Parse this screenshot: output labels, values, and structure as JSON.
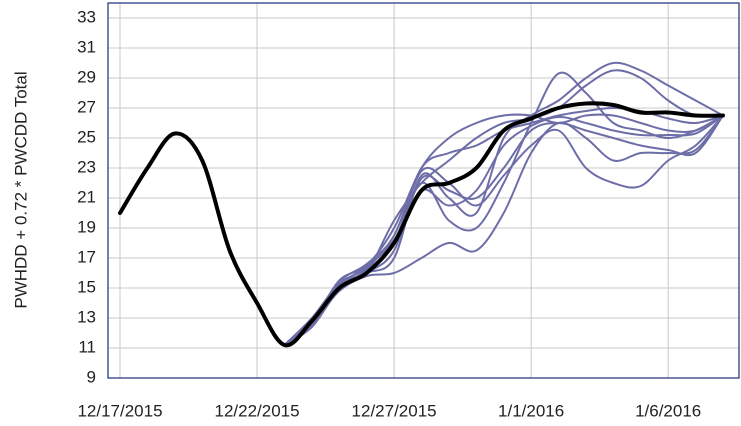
{
  "chart_data": {
    "type": "line",
    "y_label": "PWHDD  +  0.72 * PWCDD Total",
    "x": [
      "12/17/2015",
      "12/18/2015",
      "12/19/2015",
      "12/20/2015",
      "12/21/2015",
      "12/22/2015",
      "12/23/2015",
      "12/24/2015",
      "12/25/2015",
      "12/26/2015",
      "12/27/2015",
      "12/28/2015",
      "12/29/2015",
      "12/30/2015",
      "12/31/2015",
      "1/1/2016",
      "1/2/2016",
      "1/3/2016",
      "1/4/2016",
      "1/5/2016",
      "1/6/2016",
      "1/7/2016",
      "1/8/2016"
    ],
    "xlim": [
      "12/17/2015",
      "1/8/2016"
    ],
    "xticks": [
      "12/17/2015",
      "12/22/2015",
      "12/27/2015",
      "1/1/2016",
      "1/6/2016"
    ],
    "ylim": [
      9,
      34
    ],
    "yticks": [
      9,
      11,
      13,
      15,
      17,
      19,
      21,
      23,
      25,
      27,
      29,
      31,
      33
    ],
    "grid": true,
    "series": [
      {
        "color": "#6d6ea8",
        "values": [
          null,
          null,
          null,
          null,
          null,
          null,
          11.2,
          12.8,
          15.2,
          16,
          17,
          22.5,
          21,
          20,
          25,
          26.5,
          27.5,
          29,
          30,
          29.5,
          28.5,
          27.5,
          26.5
        ]
      },
      {
        "color": "#6d6ea8",
        "values": [
          null,
          null,
          null,
          null,
          null,
          null,
          11.2,
          12.5,
          15,
          16.2,
          18,
          22,
          19.5,
          19,
          22,
          26,
          29.3,
          28,
          26,
          25.5,
          25,
          25.5,
          26.5
        ]
      },
      {
        "color": "#6d6ea8",
        "values": [
          null,
          null,
          null,
          null,
          null,
          null,
          11.2,
          12.6,
          14.8,
          15.8,
          16,
          17,
          18,
          17.5,
          20,
          24,
          26,
          25,
          23.5,
          24,
          24,
          24.2,
          26.5
        ]
      },
      {
        "color": "#6d6ea8",
        "values": [
          null,
          null,
          null,
          null,
          null,
          null,
          11.2,
          13,
          15.3,
          16.3,
          18,
          22.8,
          22,
          20.5,
          22.5,
          24.5,
          25.5,
          23,
          22,
          21.8,
          23.5,
          24.5,
          26.5
        ]
      },
      {
        "color": "#6d6ea8",
        "values": [
          null,
          null,
          null,
          null,
          null,
          null,
          11.2,
          12.7,
          15.5,
          16.5,
          19,
          23,
          25,
          26,
          26.5,
          26.5,
          26,
          26.5,
          26.5,
          26,
          25.5,
          25.5,
          26.5
        ]
      },
      {
        "color": "#6d6ea8",
        "values": [
          null,
          null,
          null,
          null,
          null,
          null,
          11.2,
          12.9,
          15.1,
          16.1,
          19.5,
          22,
          23.5,
          25,
          26,
          26.3,
          27,
          28.5,
          29.5,
          29,
          27.5,
          26.5,
          26.5
        ]
      },
      {
        "color": "#6d6ea8",
        "values": [
          null,
          null,
          null,
          null,
          null,
          null,
          11.2,
          12.4,
          14.9,
          16,
          17.5,
          22.3,
          21.5,
          21,
          23,
          25.5,
          26,
          25.5,
          25,
          24.5,
          24.2,
          24,
          26.5
        ]
      },
      {
        "color": "#6d6ea8",
        "values": [
          null,
          null,
          null,
          null,
          null,
          null,
          11.2,
          12.6,
          15.4,
          16.6,
          18.5,
          23,
          24,
          24.5,
          25.5,
          26,
          26.5,
          26.8,
          27,
          26.8,
          26.3,
          26,
          26.5
        ]
      },
      {
        "color": "#6d6ea8",
        "values": [
          null,
          null,
          null,
          null,
          null,
          null,
          11.2,
          12.8,
          15.2,
          16.4,
          18.2,
          21.5,
          20.5,
          21.5,
          24.5,
          25.8,
          26.4,
          26,
          25.5,
          25.2,
          25.2,
          25.3,
          26.5
        ]
      },
      {
        "color": "#000000",
        "width": 4,
        "values": [
          20,
          23,
          25.3,
          23.5,
          17.5,
          14,
          11.2,
          12.8,
          15,
          16,
          18,
          21.5,
          22,
          23,
          25.5,
          26.3,
          27,
          27.3,
          27.2,
          26.7,
          26.7,
          26.5,
          26.5
        ]
      }
    ]
  }
}
